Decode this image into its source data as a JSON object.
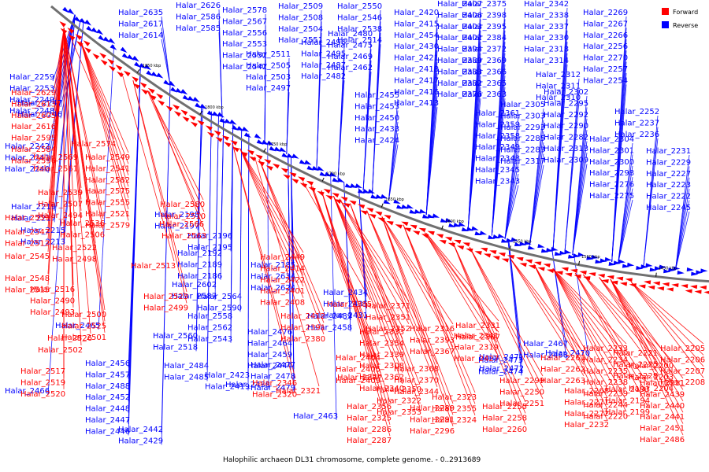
{
  "caption": "Halophilic archaeon DL31 chromosome, complete genome. - 0..2913689",
  "legend": [
    {
      "label": "Forward",
      "color": "#ff0000"
    },
    {
      "label": "Reverse",
      "color": "#0000ff"
    }
  ],
  "colors": {
    "forward": "#ff0000",
    "reverse": "#0000ff",
    "backbone": "#707070"
  },
  "ticks": [
    "1850 kbp",
    "1800 kbp",
    "1750 kbp",
    "1700 kbp",
    "1650 kbp",
    "1600 kbp",
    "1550 kbp",
    "1500 kbp",
    "1450 kbp"
  ],
  "reverse_labels": [
    "Halar_2635",
    "Halar_2617",
    "Halar_2614",
    "Halar_2626",
    "Halar_2586",
    "Halar_2585",
    "Halar_2578",
    "Halar_2567",
    "Halar_2556",
    "Halar_2553",
    "Halar_2552",
    "Halar_2542",
    "Halar_2509",
    "Halar_2508",
    "Halar_2504",
    "Halar_2551",
    "Halar_2550",
    "Halar_2546",
    "Halar_2538",
    "Halar_2514",
    "Halar_2511",
    "Halar_2505",
    "Halar_2503",
    "Halar_2497",
    "Halar_2496",
    "Halar_2495",
    "Halar_2487",
    "Halar_2482",
    "Halar_2480",
    "Halar_2475",
    "Halar_2469",
    "Halar_2462",
    "Halar_2455",
    "Halar_2453",
    "Halar_2450",
    "Halar_2433",
    "Halar_2424",
    "Halar_2420",
    "Halar_2415",
    "Halar_2454",
    "Halar_2430",
    "Halar_2421",
    "Halar_2418",
    "Halar_2417",
    "Halar_2416",
    "Halar_2413",
    "Halar_2407",
    "Halar_2406",
    "Halar_2403",
    "Halar_2402",
    "Halar_2394",
    "Halar_2389",
    "Halar_2383",
    "Halar_2382",
    "Halar_2376",
    "Halar_2375",
    "Halar_2398",
    "Halar_2395",
    "Halar_2384",
    "Halar_2372",
    "Halar_2369",
    "Halar_2366",
    "Halar_2365",
    "Halar_2363",
    "Halar_2361",
    "Halar_2359",
    "Halar_2358",
    "Halar_2349",
    "Halar_2348",
    "Halar_2345",
    "Halar_2343",
    "Halar_2342",
    "Halar_2338",
    "Halar_2337",
    "Halar_2330",
    "Halar_2318",
    "Halar_2314",
    "Halar_2312",
    "Halar_2311",
    "Halar_2310",
    "Halar_2305",
    "Halar_2303",
    "Halar_2293",
    "Halar_2285",
    "Halar_2283",
    "Halar_2317",
    "Halar_2302",
    "Halar_2295",
    "Halar_2292",
    "Halar_2290",
    "Halar_2282",
    "Halar_2313",
    "Halar_2309",
    "Halar_2304",
    "Halar_2301",
    "Halar_2300",
    "Halar_2298",
    "Halar_2276",
    "Halar_2275",
    "Halar_2269",
    "Halar_2267",
    "Halar_2266",
    "Halar_2256",
    "Halar_2270",
    "Halar_2257",
    "Halar_2254",
    "Halar_2252",
    "Halar_2237",
    "Halar_2236",
    "Halar_2231",
    "Halar_2229",
    "Halar_2227",
    "Halar_2223",
    "Halar_2222",
    "Halar_2245",
    "Halar_2259",
    "Halar_2253",
    "Halar_2249",
    "Halar_2248",
    "Halar_2247",
    "Halar_2246",
    "Halar_2242",
    "Halar_2241",
    "Halar_2240",
    "Halar_2219",
    "Halar_2217",
    "Halar_2215",
    "Halar_2213",
    "Halar_2198",
    "Halar_2197",
    "Halar_2196",
    "Halar_2195",
    "Halar_2192",
    "Halar_2189",
    "Halar_2186",
    "Halar_2185",
    "Halar_2634",
    "Halar_2624",
    "Halar_2602",
    "Halar_2587",
    "Halar_2564",
    "Halar_2590",
    "Halar_2558",
    "Halar_2562",
    "Halar_2543",
    "Halar_2560",
    "Halar_2518",
    "Halar_2484",
    "Halar_2485",
    "Halar_2476",
    "Halar_2464",
    "Halar_2459",
    "Halar_2444",
    "Halar_2434",
    "Halar_2435",
    "Halar_2431",
    "Halar_2489",
    "Halar_2458",
    "Halar_2463",
    "Halar_2465",
    "Halar_2466",
    "Halar_2467",
    "Halar_2468",
    "Halar_2470",
    "Halar_2471",
    "Halar_2472",
    "Halar_2473",
    "Halar_2474",
    "Halar_2477",
    "Halar_2478",
    "Halar_2479",
    "Halar_2456",
    "Halar_2457",
    "Halar_2488",
    "Halar_2452",
    "Halar_2448",
    "Halar_2447",
    "Halar_2446",
    "Halar_2445",
    "Halar_2442",
    "Halar_2429",
    "Halar_2428",
    "Halar_2425",
    "Halar_2423",
    "Halar_2419",
    "Halar_2438",
    "Halar_2437",
    "Halar_2436",
    "Halar_2426",
    "Halar_2400",
    "Halar_2396",
    "Halar_2399",
    "Halar_2397",
    "Halar_2524",
    "Halar_2527",
    "Halar_2281",
    "Halar_2280",
    "Halar_2284",
    "Halar_2315"
  ],
  "forward_labels": [
    "Halar_2629",
    "Halar_2613",
    "Halar_2605",
    "Halar_2616",
    "Halar_2595",
    "Halar_2584",
    "Halar_2596",
    "Halar_2574",
    "Halar_2569",
    "Halar_2561",
    "Halar_2549",
    "Halar_2541",
    "Halar_2582",
    "Halar_2575",
    "Halar_2555",
    "Halar_2521",
    "Halar_2579",
    "Halar_2539",
    "Halar_2507",
    "Halar_2494",
    "Halar_2580",
    "Halar_2559",
    "Halar_2536",
    "Halar_2506",
    "Halar_2510",
    "Halar_2566",
    "Halar_2547",
    "Halar_2512",
    "Halar_2522",
    "Halar_2498",
    "Halar_2563",
    "Halar_2545",
    "Halar_2513",
    "Halar_2548",
    "Halar_2515",
    "Halar_2516",
    "Halar_2490",
    "Halar_2493",
    "Halar_2523",
    "Halar_2499",
    "Halar_2500",
    "Halar_2525",
    "Halar_2501",
    "Halar_2526",
    "Halar_2502",
    "Halar_2517",
    "Halar_2519",
    "Halar_2520",
    "Halar_2449",
    "Halar_2414",
    "Halar_2422",
    "Halar_2401",
    "Halar_2408",
    "Halar_2412",
    "Halar_2391",
    "Halar_2380",
    "Halar_2385",
    "Halar_2371",
    "Halar_2351",
    "Halar_2352",
    "Halar_2331",
    "Halar_2307",
    "Halar_2333",
    "Halar_2354",
    "Halar_2339",
    "Halar_2308",
    "Halar_2362",
    "Halar_2340",
    "Halar_2316",
    "Halar_2393",
    "Halar_2367",
    "Halar_2341",
    "Halar_2319",
    "Halar_2427",
    "Halar_2404",
    "Halar_2405",
    "Halar_2409",
    "Halar_2368",
    "Halar_2370",
    "Halar_2344",
    "Halar_2346",
    "Halar_2320",
    "Halar_2321",
    "Halar_2377",
    "Halar_2350",
    "Halar_2322",
    "Halar_2353",
    "Halar_2323",
    "Halar_2355",
    "Halar_2324",
    "Halar_2356",
    "Halar_2325",
    "Halar_2286",
    "Halar_2287",
    "Halar_2289",
    "Halar_2291",
    "Halar_2296",
    "Halar_2299",
    "Halar_2250",
    "Halar_2251",
    "Halar_2255",
    "Halar_2258",
    "Halar_2260",
    "Halar_2261",
    "Halar_2262",
    "Halar_2263",
    "Halar_2268",
    "Halar_2271",
    "Halar_2272",
    "Halar_2232",
    "Halar_2233",
    "Halar_2234",
    "Halar_2235",
    "Halar_2238",
    "Halar_2239",
    "Halar_2244",
    "Halar_2220",
    "Halar_2221",
    "Halar_2225",
    "Halar_2228",
    "Halar_2193",
    "Halar_2194",
    "Halar_2199",
    "Halar_2200",
    "Halar_2203",
    "Halar_2204",
    "Halar_2205",
    "Halar_2206",
    "Halar_2207",
    "Halar_2208",
    "Halar_2211",
    "Halar_2439",
    "Halar_2440",
    "Halar_2441",
    "Halar_2451",
    "Halar_2486"
  ]
}
